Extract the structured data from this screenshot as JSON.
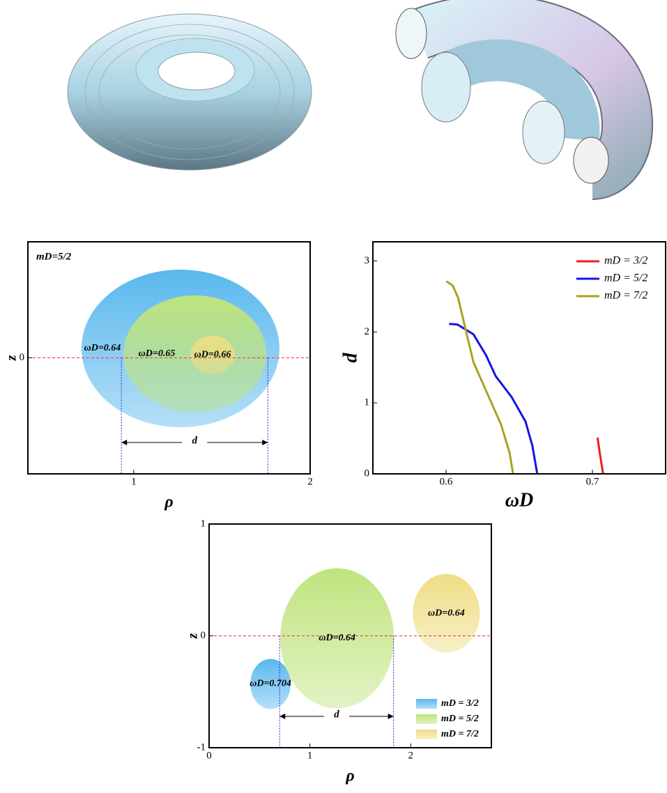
{
  "chart_data": [
    {
      "type": "ellipse",
      "title": "mD=5/2",
      "x_label": "ρ",
      "y_label": "z",
      "xlim": [
        0.4,
        2.0
      ],
      "xticks": [
        1,
        2
      ],
      "ylim": [
        -1,
        1
      ],
      "yticks": [
        0
      ],
      "reference_y": 0,
      "d_label": "d",
      "d_edges": [
        0.93,
        1.76
      ],
      "ellipses": [
        {
          "label": "ωD=0.64",
          "color": "#5ab8ee",
          "cx": 1.265,
          "cz": 0.081,
          "rx": 0.561,
          "rz": 0.679
        },
        {
          "label": "ωD=0.65",
          "color": "#bfe47e",
          "cx": 1.346,
          "cz": 0.033,
          "rx": 0.405,
          "rz": 0.505
        },
        {
          "label": "ωD=0.66",
          "color": "#eedd84",
          "cx": 1.447,
          "cz": 0.024,
          "rx": 0.126,
          "rz": 0.165
        }
      ]
    },
    {
      "type": "line",
      "x_label": "ωD",
      "y_label": "d",
      "xlim": [
        0.55,
        0.75
      ],
      "xticks": [
        0.6,
        0.7
      ],
      "ylim": [
        0,
        3.27
      ],
      "yticks": [
        0,
        1,
        2,
        3
      ],
      "series": [
        {
          "name": "mD = 3/2",
          "color": "#ee1c1c",
          "x": [
            0.7035,
            0.705,
            0.7073
          ],
          "values": [
            0.511,
            0.295,
            0
          ]
        },
        {
          "name": "mD = 5/2",
          "color": "#1414e0",
          "x": [
            0.6021,
            0.6078,
            0.6187,
            0.6273,
            0.6339,
            0.6448,
            0.6543,
            0.659,
            0.6623
          ],
          "values": [
            2.114,
            2.104,
            1.967,
            1.672,
            1.377,
            1.082,
            0.737,
            0.393,
            0
          ]
        },
        {
          "name": "mD = 7/2",
          "color": "#a8a222",
          "x": [
            0.6002,
            0.6045,
            0.6083,
            0.613,
            0.6187,
            0.6282,
            0.6377,
            0.6434,
            0.6458
          ],
          "values": [
            2.714,
            2.655,
            2.478,
            2.065,
            1.573,
            1.131,
            0.688,
            0.295,
            0
          ]
        }
      ]
    },
    {
      "type": "ellipse",
      "x_label": "ρ",
      "y_label": "z",
      "xlim": [
        0,
        2.8
      ],
      "xticks": [
        0,
        1,
        2
      ],
      "ylim": [
        -1,
        1
      ],
      "yticks": [
        -1,
        0,
        1
      ],
      "reference_y": 0,
      "d_label": "d",
      "d_edges": [
        0.7,
        1.83
      ],
      "ellipses": [
        {
          "name": "mD = 3/2",
          "label": "ωD=0.704",
          "color": "#5ab8ee",
          "cx": 0.609,
          "cz": -0.43,
          "rx": 0.2,
          "rz": 0.224
        },
        {
          "name": "mD = 5/2",
          "label": "ωD=0.64",
          "color": "#bfe47e",
          "cx": 1.27,
          "cz": -0.022,
          "rx": 0.564,
          "rz": 0.626
        },
        {
          "name": "mD = 7/2",
          "label": "ωD=0.64",
          "color": "#eedd84",
          "cx": 2.353,
          "cz": 0.202,
          "rx": 0.332,
          "rz": 0.352
        }
      ]
    }
  ]
}
